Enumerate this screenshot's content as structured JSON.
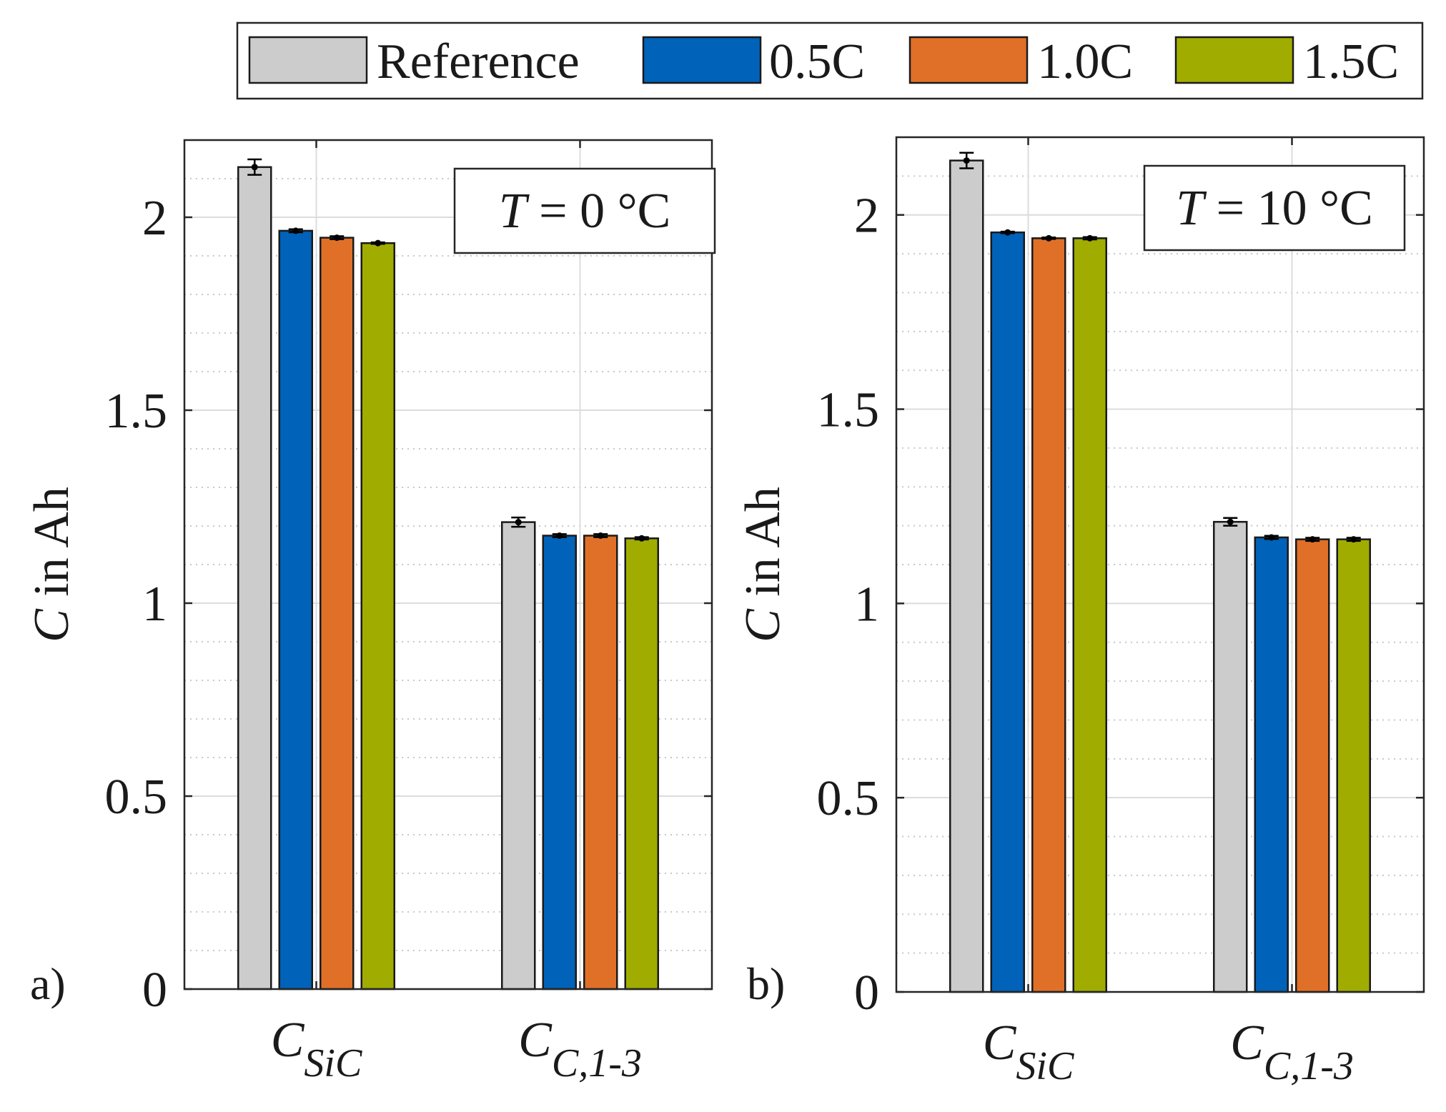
{
  "legend": {
    "entries": [
      {
        "label": "Reference",
        "color": "#CCCCCC"
      },
      {
        "label": "0.5C",
        "color": "#0062B9"
      },
      {
        "label": "1.0C",
        "color": "#E07027"
      },
      {
        "label": "1.5C",
        "color": "#A0AD00"
      }
    ]
  },
  "chart_data": [
    {
      "type": "bar",
      "panel_label": "a)",
      "annotation": {
        "symbol": "T",
        "text": " = 0 °C"
      },
      "ylabel": {
        "symbol": "C",
        "text": " in Ah"
      },
      "ylim": [
        0,
        2.2
      ],
      "yticks": [
        "0",
        "0.5",
        "1",
        "1.5",
        "2"
      ],
      "grid": true,
      "categories": [
        {
          "main": "C",
          "sub": "SiC"
        },
        {
          "main": "C",
          "sub": "C,1-3"
        }
      ],
      "series": [
        {
          "name": "Reference",
          "values": [
            2.13,
            1.21
          ],
          "errors": [
            0.02,
            0.012
          ]
        },
        {
          "name": "0.5C",
          "values": [
            1.965,
            1.175
          ],
          "errors": [
            0.004,
            0.004
          ]
        },
        {
          "name": "1.0C",
          "values": [
            1.947,
            1.175
          ],
          "errors": [
            0.004,
            0.004
          ]
        },
        {
          "name": "1.5C",
          "values": [
            1.933,
            1.168
          ],
          "errors": [
            0.002,
            0.003
          ]
        }
      ]
    },
    {
      "type": "bar",
      "panel_label": "b)",
      "annotation": {
        "symbol": "T",
        "text": " = 10 °C"
      },
      "ylabel": {
        "symbol": "C",
        "text": " in Ah"
      },
      "ylim": [
        0,
        2.2
      ],
      "yticks": [
        "0",
        "0.5",
        "1",
        "1.5",
        "2"
      ],
      "grid": true,
      "categories": [
        {
          "main": "C",
          "sub": "SiC"
        },
        {
          "main": "C",
          "sub": "C,1-3"
        }
      ],
      "series": [
        {
          "name": "Reference",
          "values": [
            2.14,
            1.21
          ],
          "errors": [
            0.02,
            0.01
          ]
        },
        {
          "name": "0.5C",
          "values": [
            1.955,
            1.17
          ],
          "errors": [
            0.002,
            0.004
          ]
        },
        {
          "name": "1.0C",
          "values": [
            1.94,
            1.165
          ],
          "errors": [
            0.002,
            0.004
          ]
        },
        {
          "name": "1.5C",
          "values": [
            1.94,
            1.165
          ],
          "errors": [
            0.003,
            0.004
          ]
        }
      ]
    }
  ]
}
